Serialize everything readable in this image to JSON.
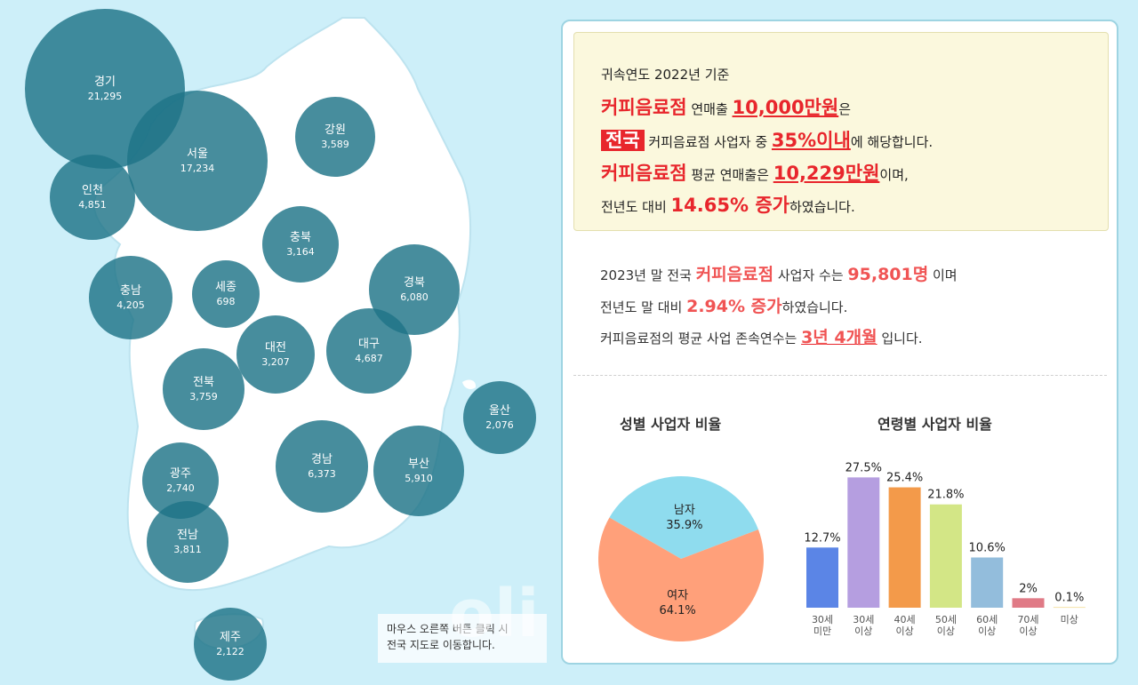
{
  "map": {
    "bubbles": [
      {
        "id": "gyeonggi",
        "name": "경기",
        "value": "21,295"
      },
      {
        "id": "seoul",
        "name": "서울",
        "value": "17,234"
      },
      {
        "id": "incheon",
        "name": "인천",
        "value": "4,851"
      },
      {
        "id": "gangwon",
        "name": "강원",
        "value": "3,589"
      },
      {
        "id": "chungbuk",
        "name": "충북",
        "value": "3,164"
      },
      {
        "id": "chungnam",
        "name": "충남",
        "value": "4,205"
      },
      {
        "id": "sejong",
        "name": "세종",
        "value": "698"
      },
      {
        "id": "gyeongbuk",
        "name": "경북",
        "value": "6,080"
      },
      {
        "id": "daejeon",
        "name": "대전",
        "value": "3,207"
      },
      {
        "id": "daegu",
        "name": "대구",
        "value": "4,687"
      },
      {
        "id": "jeonbuk",
        "name": "전북",
        "value": "3,759"
      },
      {
        "id": "ulsan",
        "name": "울산",
        "value": "2,076"
      },
      {
        "id": "gwangju",
        "name": "광주",
        "value": "2,740"
      },
      {
        "id": "gyeongnam",
        "name": "경남",
        "value": "6,373"
      },
      {
        "id": "busan",
        "name": "부산",
        "value": "5,910"
      },
      {
        "id": "jeonnam",
        "name": "전남",
        "value": "3,811"
      },
      {
        "id": "jeju",
        "name": "제주",
        "value": "2,122"
      }
    ],
    "tip_line1": "마우스 오른쪽 버튼 클릭 시",
    "tip_line2": "전국 지도로 이동합니다."
  },
  "summary": {
    "line1": "귀속연도 2022년 기준",
    "l2_industry": "커피음료점",
    "l2_mid": " 연매출 ",
    "l2_amount": "10,000만원",
    "l2_end": "은",
    "l3_nation": "전국",
    "l3_mid": " 커피음료점 사업자 중 ",
    "l3_pct": "35%이내",
    "l3_end": "에 해당합니다.",
    "l4_industry": "커피음료점",
    "l4_mid": " 평균 연매출은 ",
    "l4_amount": "10,229만원",
    "l4_end": "이며,",
    "l5_start": "전년도 대비 ",
    "l5_change": "14.65% 증가",
    "l5_end": "하였습니다."
  },
  "stats": {
    "l1_start": "2023년 말 전국 ",
    "l1_industry": "커피음료점",
    "l1_mid": " 사업자 수는 ",
    "l1_count": "95,801명",
    "l1_end": " 이며",
    "l2_start": "전년도 말 대비 ",
    "l2_change": "2.94% 증가",
    "l2_end": "하였습니다.",
    "l3_start": "커피음료점의 평균 사업 존속연수는 ",
    "l3_years": "3년 4개월",
    "l3_end": " 입니다."
  },
  "colors": {
    "accent_red": "#e8262c",
    "bubble": "#1f7487",
    "male": "#8fdcee",
    "female": "#ffa07a"
  },
  "watermark": "oli",
  "chart_data": [
    {
      "type": "pie",
      "title": "성별 사업자 비율",
      "slices": [
        {
          "label": "남자",
          "value": 35.9,
          "display": "35.9%",
          "color": "#8fdcee"
        },
        {
          "label": "여자",
          "value": 64.1,
          "display": "64.1%",
          "color": "#ffa07a"
        }
      ]
    },
    {
      "type": "bar",
      "title": "연령별 사업자 비율",
      "categories": [
        [
          "30세",
          "미만"
        ],
        [
          "30세",
          "이상"
        ],
        [
          "40세",
          "이상"
        ],
        [
          "50세",
          "이상"
        ],
        [
          "60세",
          "이상"
        ],
        [
          "70세",
          "이상"
        ],
        [
          "미상"
        ]
      ],
      "values": [
        12.7,
        27.5,
        25.4,
        21.8,
        10.6,
        2,
        0.1
      ],
      "labels": [
        "12.7%",
        "27.5%",
        "25.4%",
        "21.8%",
        "10.6%",
        "2%",
        "0.1%"
      ],
      "colors": [
        "#5b85e6",
        "#b59ee0",
        "#f39a4a",
        "#d3e686",
        "#93bddc",
        "#e07a86",
        "#f0d070"
      ],
      "ylim": [
        0,
        30
      ]
    }
  ]
}
